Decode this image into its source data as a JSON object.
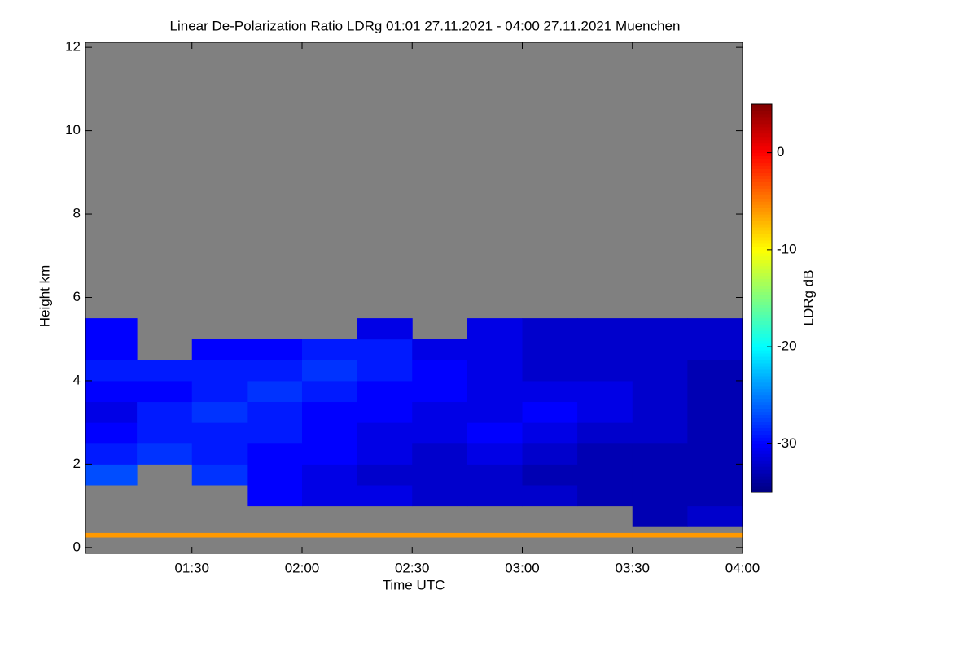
{
  "chart_data": {
    "type": "heatmap",
    "title": "Linear De-Polarization Ratio LDRg   01:01 27.11.2021 - 04:00 27.11.2021 Muenchen",
    "x_label": "Time UTC",
    "y_label": "Height km",
    "colorbar_label": "LDRg dB",
    "xlim": [
      1.0167,
      4.0
    ],
    "ylim": [
      -0.14,
      12.12
    ],
    "xticks": [
      {
        "value": 1.5,
        "label": "01:30"
      },
      {
        "value": 2.0,
        "label": "02:00"
      },
      {
        "value": 2.5,
        "label": "02:30"
      },
      {
        "value": 3.0,
        "label": "03:00"
      },
      {
        "value": 3.5,
        "label": "03:30"
      },
      {
        "value": 4.0,
        "label": "04:00"
      }
    ],
    "yticks": [
      0,
      2,
      4,
      6,
      8,
      10,
      12
    ],
    "clim": [
      -35,
      5
    ],
    "cticks": [
      0,
      -10,
      -20,
      -30
    ],
    "no_data_color": "#808080",
    "colormap": "jet",
    "x_edges": [
      1.0167,
      1.25,
      1.5,
      1.75,
      2.0,
      2.25,
      2.5,
      2.75,
      3.0,
      3.25,
      3.5,
      3.75,
      4.0
    ],
    "y_edges": [
      0,
      0.25,
      0.35,
      0.5,
      1,
      1.5,
      2,
      2.5,
      3,
      3.5,
      4,
      4.5,
      5,
      5.5,
      6
    ],
    "values": [
      [
        null,
        null,
        null,
        null,
        null,
        null,
        null,
        null,
        null,
        null,
        null,
        null
      ],
      [
        -6,
        -6,
        -6,
        -6,
        -6,
        -6,
        -6,
        -6,
        -6,
        -6,
        -6,
        -6
      ],
      [
        null,
        null,
        null,
        null,
        null,
        null,
        null,
        null,
        null,
        null,
        null,
        null
      ],
      [
        null,
        null,
        null,
        null,
        null,
        null,
        null,
        null,
        null,
        null,
        -33,
        -32
      ],
      [
        null,
        null,
        null,
        -30,
        -31,
        -31,
        -32,
        -32,
        -32,
        -33,
        -33,
        -33
      ],
      [
        -27,
        null,
        -28,
        -30,
        -31,
        -32,
        -32,
        -32,
        -33,
        -33,
        -33,
        -33
      ],
      [
        -29,
        -28,
        -29,
        -30,
        -30,
        -31,
        -32,
        -31,
        -32,
        -33,
        -33,
        -33
      ],
      [
        -30,
        -29,
        -29,
        -29,
        -30,
        -31,
        -31,
        -30,
        -31,
        -32,
        -32,
        -33
      ],
      [
        -31,
        -29,
        -28,
        -29,
        -30,
        -30,
        -31,
        -31,
        -30,
        -31,
        -32,
        -33
      ],
      [
        -30,
        -30,
        -29,
        -28,
        -29,
        -30,
        -30,
        -31,
        -31,
        -31,
        -32,
        -33
      ],
      [
        -29,
        -29,
        -29,
        -29,
        -28,
        -29,
        -30,
        -31,
        -32,
        -32,
        -32,
        -33
      ],
      [
        -30,
        null,
        -30,
        -30,
        -29,
        -29,
        -31,
        -31,
        -32,
        -32,
        -32,
        -32
      ],
      [
        -30,
        null,
        null,
        null,
        null,
        -31,
        null,
        -31,
        -32,
        -32,
        -32,
        -32
      ],
      [
        null,
        null,
        null,
        null,
        null,
        null,
        null,
        null,
        null,
        null,
        null,
        null
      ]
    ]
  }
}
